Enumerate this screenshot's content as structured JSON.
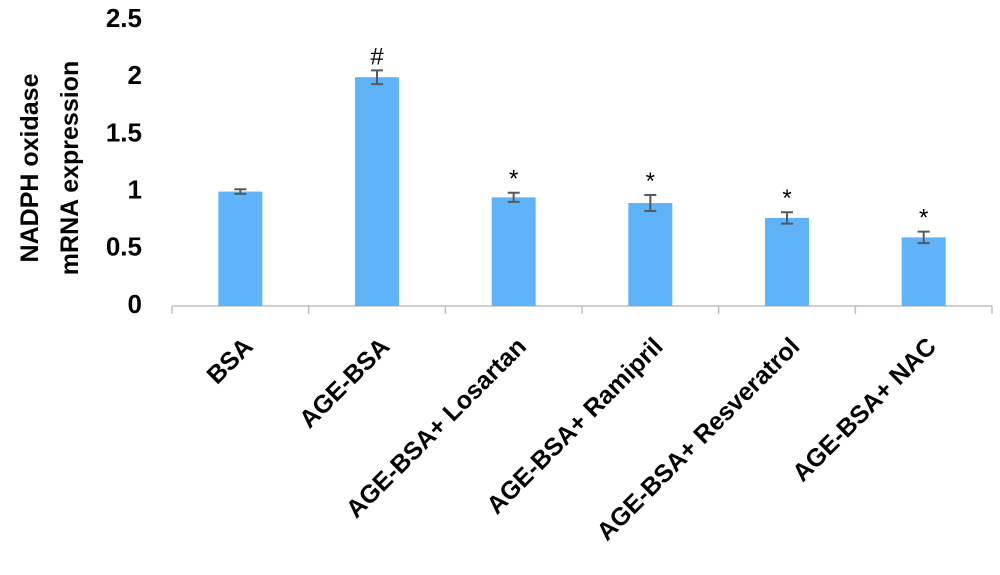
{
  "chart_data": {
    "type": "bar",
    "ylabel": [
      "NADPH oxidase",
      "mRNA expression"
    ],
    "categories": [
      "BSA",
      "AGE-BSA",
      "AGE-BSA+ Losartan",
      "AGE-BSA+ Ramipril",
      "AGE-BSA+ Resveratrol",
      "AGE-BSA+ NAC"
    ],
    "values": [
      1.0,
      2.0,
      0.95,
      0.9,
      0.77,
      0.6
    ],
    "errors": [
      0.02,
      0.06,
      0.04,
      0.07,
      0.05,
      0.05
    ],
    "annotations": [
      null,
      "#",
      "*",
      "*",
      "*",
      "*"
    ],
    "color": "#5fb4f9",
    "ylim": [
      0,
      2.5
    ],
    "yticks": [
      0,
      0.5,
      1,
      1.5,
      2,
      2.5
    ],
    "grid": false
  }
}
